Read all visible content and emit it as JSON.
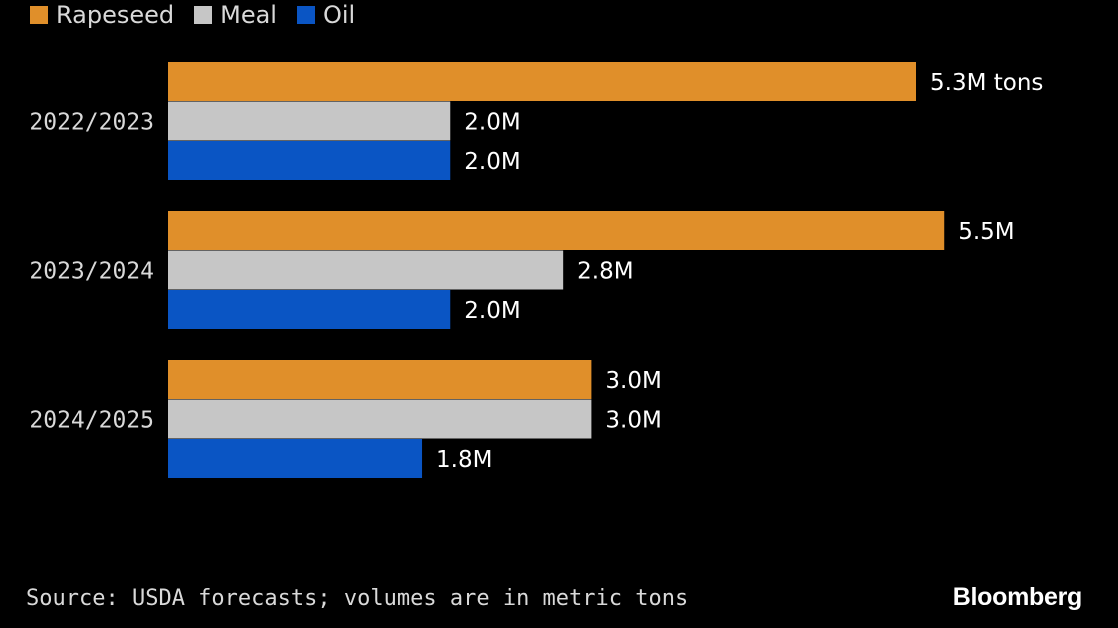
{
  "chart_data": {
    "type": "bar",
    "orientation": "horizontal",
    "categories": [
      "2022/2023",
      "2023/2024",
      "2024/2025"
    ],
    "series": [
      {
        "name": "Rapeseed",
        "color": "#e08f2a",
        "values": [
          5.3,
          5.5,
          3.0
        ],
        "labels": [
          "5.3M tons",
          "5.5M",
          "3.0M"
        ]
      },
      {
        "name": "Meal",
        "color": "#c6c6c6",
        "values": [
          2.0,
          2.8,
          3.0
        ],
        "labels": [
          "2.0M",
          "2.8M",
          "3.0M"
        ]
      },
      {
        "name": "Oil",
        "color": "#0a55c4",
        "values": [
          2.0,
          2.0,
          1.8
        ],
        "labels": [
          "2.0M",
          "2.0M",
          "1.8M"
        ]
      }
    ],
    "xlim": [
      0,
      6.5
    ],
    "grid": false,
    "legend": "top-left"
  },
  "footer": {
    "source": "Source: USDA forecasts; volumes are in metric tons",
    "brand": "Bloomberg"
  }
}
